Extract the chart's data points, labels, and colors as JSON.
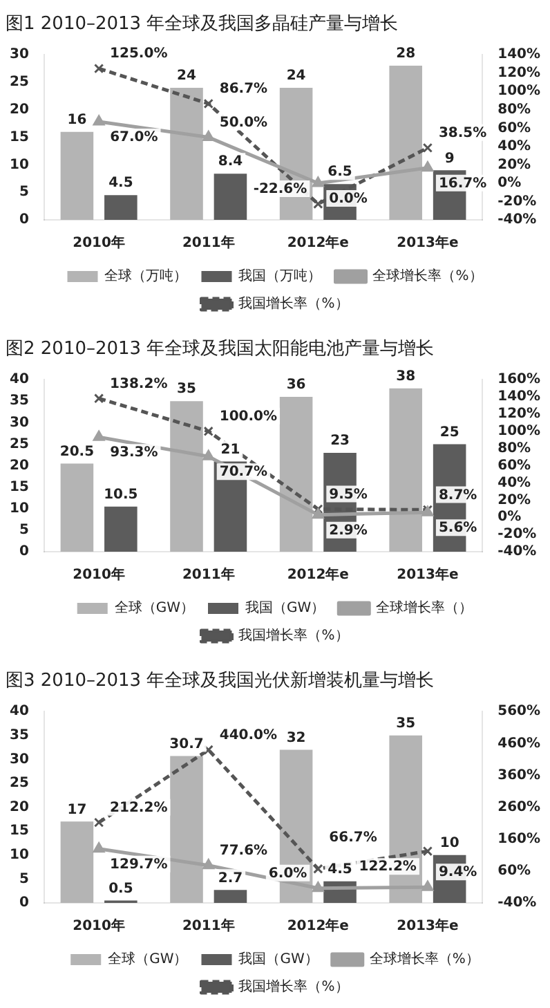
{
  "chart_data": [
    {
      "type": "bar",
      "title": "图1 2010–2013 年全球及我国多晶硅产量与增长",
      "categories": [
        "2010年",
        "2011年",
        "2012年e",
        "2013年e"
      ],
      "legend": "bottom",
      "grid": false,
      "ylim": [
        0,
        30
      ],
      "yticks": [
        0,
        5,
        10,
        15,
        20,
        25,
        30
      ],
      "y2lim": [
        -40,
        140
      ],
      "y2ticks": [
        {
          "value": -40,
          "label": "-40%"
        },
        {
          "value": -20,
          "label": "-20%"
        },
        {
          "value": 0,
          "label": "0%"
        },
        {
          "value": 20,
          "label": "20%"
        },
        {
          "value": 40,
          "label": "40%"
        },
        {
          "value": 60,
          "label": "60%"
        },
        {
          "value": 80,
          "label": "80%"
        },
        {
          "value": 100,
          "label": "100%"
        },
        {
          "value": 120,
          "label": "120%"
        },
        {
          "value": 140,
          "label": "140%"
        }
      ],
      "series": [
        {
          "name": "全球（万吨）",
          "type": "bar",
          "color": "#b4b4b4",
          "values": [
            16,
            24,
            24,
            28
          ],
          "value_labels": [
            "16",
            "24",
            "24",
            "28"
          ]
        },
        {
          "name": "我国（万吨）",
          "type": "bar",
          "color": "#5c5c5c",
          "values": [
            4.5,
            8.4,
            6.5,
            9
          ],
          "value_labels": [
            "4.5",
            "8.4",
            "6.5",
            "9"
          ]
        },
        {
          "name": "全球增长率（%）",
          "type": "line",
          "axis": "y2",
          "color": "#a0a0a0",
          "marker": "triangle",
          "line_style": "solid",
          "values": [
            67.0,
            50.0,
            0.0,
            16.7
          ],
          "value_labels": [
            "67.0%",
            "50.0%",
            "0.0%",
            "16.7%"
          ]
        },
        {
          "name": "我国增长率（%）",
          "type": "line",
          "axis": "y2",
          "color": "#555555",
          "marker": "cross",
          "line_style": "dashed",
          "values": [
            125.0,
            86.7,
            -22.6,
            38.5
          ],
          "value_labels": [
            "125.0%",
            "86.7%",
            "-22.6%",
            "38.5%"
          ]
        }
      ]
    },
    {
      "type": "bar",
      "title": "图2 2010–2013 年全球及我国太阳能电池产量与增长",
      "categories": [
        "2010年",
        "2011年",
        "2012年e",
        "2013年e"
      ],
      "legend": "bottom",
      "grid": false,
      "ylim": [
        0,
        40
      ],
      "yticks": [
        0,
        5,
        10,
        15,
        20,
        25,
        30,
        35,
        40
      ],
      "y2lim": [
        -40,
        160
      ],
      "y2ticks": [
        {
          "value": -40,
          "label": "-40%"
        },
        {
          "value": -20,
          "label": "-20%"
        },
        {
          "value": 0,
          "label": "0%"
        },
        {
          "value": 20,
          "label": "20%"
        },
        {
          "value": 40,
          "label": "40%"
        },
        {
          "value": 60,
          "label": "60%"
        },
        {
          "value": 80,
          "label": "80%"
        },
        {
          "value": 100,
          "label": "100%"
        },
        {
          "value": 120,
          "label": "120%"
        },
        {
          "value": 140,
          "label": "140%"
        },
        {
          "value": 160,
          "label": "160%"
        }
      ],
      "series": [
        {
          "name": "全球（GW）",
          "type": "bar",
          "color": "#b4b4b4",
          "values": [
            20.5,
            35,
            36,
            38
          ],
          "value_labels": [
            "20.5",
            "35",
            "36",
            "38"
          ]
        },
        {
          "name": "我国（GW）",
          "type": "bar",
          "color": "#5c5c5c",
          "values": [
            10.5,
            21,
            23,
            25
          ],
          "value_labels": [
            "10.5",
            "21",
            "23",
            "25"
          ]
        },
        {
          "name": "全球增长率（）",
          "type": "line",
          "axis": "y2",
          "color": "#a0a0a0",
          "marker": "triangle",
          "line_style": "solid",
          "values": [
            93.3,
            70.7,
            2.9,
            5.6
          ],
          "value_labels": [
            "93.3%",
            "70.7%",
            "2.9%",
            "5.6%"
          ]
        },
        {
          "name": "我国增长率（%）",
          "type": "line",
          "axis": "y2",
          "color": "#555555",
          "marker": "cross",
          "line_style": "dashed",
          "values": [
            138.2,
            100.0,
            9.5,
            8.7
          ],
          "value_labels": [
            "138.2%",
            "100.0%",
            "9.5%",
            "8.7%"
          ]
        }
      ]
    },
    {
      "type": "bar",
      "title": "图3 2010–2013 年全球及我国光伏新增装机量与增长",
      "categories": [
        "2010年",
        "2011年",
        "2012年e",
        "2013年e"
      ],
      "legend": "bottom",
      "grid": false,
      "ylim": [
        0,
        40
      ],
      "yticks": [
        0,
        5,
        10,
        15,
        20,
        25,
        30,
        35,
        40
      ],
      "y2lim": [
        -40,
        560
      ],
      "y2ticks": [
        {
          "value": -40,
          "label": "-40%"
        },
        {
          "value": 60,
          "label": "60%"
        },
        {
          "value": 160,
          "label": "160%"
        },
        {
          "value": 260,
          "label": "260%"
        },
        {
          "value": 360,
          "label": "360%"
        },
        {
          "value": 460,
          "label": "460%"
        },
        {
          "value": 560,
          "label": "560%"
        }
      ],
      "series": [
        {
          "name": "全球（GW）",
          "type": "bar",
          "color": "#b4b4b4",
          "values": [
            17,
            30.7,
            32,
            35
          ],
          "value_labels": [
            "17",
            "30.7",
            "32",
            "35"
          ]
        },
        {
          "name": "我国（GW）",
          "type": "bar",
          "color": "#5c5c5c",
          "values": [
            0.5,
            2.7,
            4.5,
            10
          ],
          "value_labels": [
            "0.5",
            "2.7",
            "4.5",
            "10"
          ]
        },
        {
          "name": "全球增长率（%）",
          "type": "line",
          "axis": "y2",
          "color": "#a0a0a0",
          "marker": "triangle",
          "line_style": "solid",
          "values": [
            129.7,
            77.6,
            6.0,
            9.4
          ],
          "value_labels": [
            "129.7%",
            "77.6%",
            "6.0%",
            "9.4%"
          ]
        },
        {
          "name": "我国增长率（%）",
          "type": "line",
          "axis": "y2",
          "color": "#555555",
          "marker": "cross",
          "line_style": "dashed",
          "values": [
            212.2,
            440.0,
            66.7,
            122.2
          ],
          "value_labels": [
            "212.2%",
            "440.0%",
            "66.7%",
            "122.2%"
          ]
        }
      ]
    }
  ]
}
